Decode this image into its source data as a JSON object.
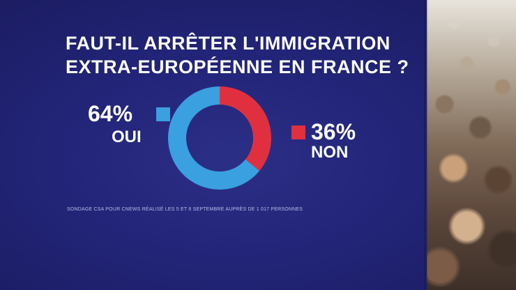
{
  "headline": {
    "line1": "FAUT-IL ARRÊTER L'IMMIGRATION",
    "line2": "EXTRA-EUROPÉENNE EN FRANCE ?"
  },
  "chart_data": {
    "type": "pie",
    "style": "donut",
    "title": "FAUT-IL ARRÊTER L'IMMIGRATION EXTRA-EUROPÉENNE EN FRANCE ?",
    "categories": [
      "OUI",
      "NON"
    ],
    "values": [
      64,
      36
    ],
    "labels": [
      "64%",
      "36%"
    ],
    "colors": [
      "#3aa0e0",
      "#e03040"
    ],
    "legend_placement": "left and right of the donut"
  },
  "source": "SONDAGE CSA POUR CNEWS RÉALISÉ LES 5 ET 6 SEPTEMBRE AUPRÈS DE 1 017 PERSONNES",
  "colors": {
    "background": "#23257a",
    "text": "#ffffff"
  }
}
